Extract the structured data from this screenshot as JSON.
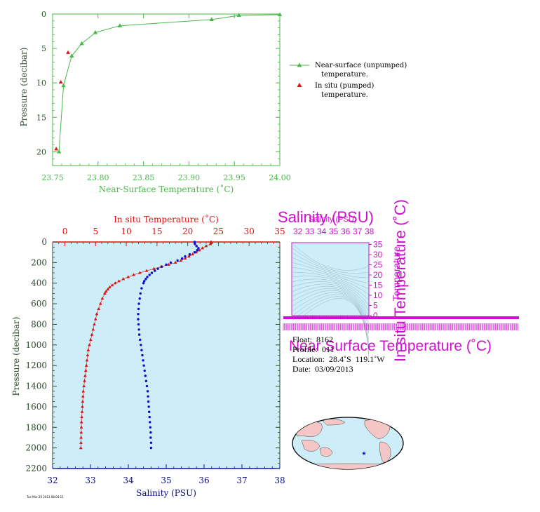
{
  "colors": {
    "green": "#4ab84a",
    "red": "#dd1111",
    "blue": "#0a0ad0",
    "navy": "#0a0a80",
    "magenta": "#d010d0",
    "plot_bg": "#cdeef8",
    "dark_green": "#2a4a2a"
  },
  "chart_data": [
    {
      "type": "line",
      "xlabel": "Near-Surface Temperature (˚C)",
      "ylabel": "Pressure (decibar)",
      "xlim": [
        23.75,
        24.0
      ],
      "ylim": [
        22,
        0
      ],
      "xticks": [
        "23.75",
        "23.80",
        "23.85",
        "23.90",
        "23.95",
        "24.00"
      ],
      "yticks": [
        "0",
        "5",
        "10",
        "15",
        "20"
      ],
      "legend_position": "right",
      "series": [
        {
          "name": "Near-surface (unpumped) temperature.",
          "marker": "triangle",
          "x": [
            23.757,
            23.762,
            23.771,
            23.782,
            23.797,
            23.824,
            23.925,
            23.955,
            24.0
          ],
          "y": [
            20.0,
            10.4,
            6.1,
            4.3,
            2.7,
            1.7,
            0.8,
            0.2,
            0.1
          ]
        },
        {
          "name": "In situ (pumped) temperature.",
          "marker": "triangle",
          "x": [
            23.754,
            23.759,
            23.767
          ],
          "y": [
            19.6,
            9.9,
            5.6
          ]
        }
      ]
    },
    {
      "type": "scatter",
      "ylabel": "Pressure (decibar)",
      "x_bottom_label": "Salinity (PSU)",
      "x_top_label": "In situ Temperature (˚C)",
      "salinity_lim": [
        32,
        38
      ],
      "temperature_lim": [
        -2,
        35
      ],
      "pressure_lim": [
        2200,
        0
      ],
      "salinity_ticks": [
        "32",
        "33",
        "34",
        "35",
        "36",
        "37",
        "38"
      ],
      "temperature_ticks": [
        "0",
        "5",
        "10",
        "15",
        "20",
        "25",
        "30",
        "35"
      ],
      "pressure_ticks": [
        "0",
        "200",
        "400",
        "600",
        "800",
        "1000",
        "1200",
        "1400",
        "1600",
        "1800",
        "2000",
        "2200"
      ],
      "grid": false,
      "series": [
        {
          "name": "In situ Temperature (˚C)",
          "marker": "triangle",
          "pressure": [
            0,
            10,
            20,
            40,
            60,
            80,
            100,
            120,
            140,
            160,
            180,
            200,
            220,
            240,
            260,
            280,
            300,
            320,
            340,
            360,
            380,
            400,
            420,
            440,
            460,
            480,
            500,
            550,
            600,
            650,
            700,
            750,
            800,
            850,
            900,
            950,
            1000,
            1050,
            1100,
            1150,
            1200,
            1250,
            1300,
            1350,
            1400,
            1450,
            1500,
            1550,
            1600,
            1650,
            1700,
            1750,
            1800,
            1850,
            1900,
            1950,
            2000
          ],
          "temperature": [
            23.8,
            23.8,
            23.7,
            23.0,
            22.4,
            21.9,
            21.4,
            20.8,
            20.2,
            19.6,
            18.9,
            18.0,
            16.9,
            15.7,
            14.5,
            13.3,
            12.2,
            11.2,
            10.3,
            9.5,
            8.8,
            8.2,
            7.7,
            7.3,
            7.0,
            6.7,
            6.5,
            6.1,
            5.8,
            5.5,
            5.2,
            5.0,
            4.8,
            4.6,
            4.4,
            4.2,
            4.0,
            3.8,
            3.7,
            3.6,
            3.5,
            3.4,
            3.3,
            3.2,
            3.1,
            3.0,
            2.95,
            2.9,
            2.85,
            2.8,
            2.75,
            2.7,
            2.68,
            2.66,
            2.64,
            2.62,
            2.6
          ]
        },
        {
          "name": "Salinity (PSU)",
          "marker": "dot",
          "pressure": [
            0,
            20,
            40,
            60,
            80,
            100,
            120,
            140,
            160,
            180,
            200,
            220,
            240,
            260,
            280,
            300,
            320,
            340,
            360,
            380,
            400,
            450,
            500,
            550,
            600,
            650,
            700,
            750,
            800,
            850,
            900,
            950,
            1000,
            1050,
            1100,
            1150,
            1200,
            1250,
            1300,
            1350,
            1400,
            1450,
            1500,
            1550,
            1600,
            1650,
            1700,
            1750,
            1800,
            1850,
            1900,
            1950,
            2000
          ],
          "salinity": [
            35.75,
            35.76,
            35.8,
            35.85,
            35.82,
            35.75,
            35.62,
            35.5,
            35.42,
            35.3,
            35.12,
            35.0,
            34.88,
            34.78,
            34.7,
            34.62,
            34.56,
            34.5,
            34.46,
            34.42,
            34.4,
            34.35,
            34.32,
            34.3,
            34.28,
            34.27,
            34.26,
            34.26,
            34.27,
            34.28,
            34.29,
            34.31,
            34.33,
            34.35,
            34.37,
            34.39,
            34.41,
            34.43,
            34.45,
            34.47,
            34.49,
            34.51,
            34.52,
            34.53,
            34.54,
            34.55,
            34.56,
            34.57,
            34.58,
            34.59,
            34.59,
            34.6,
            34.6
          ]
        }
      ]
    },
    {
      "type": "scatter",
      "title": "Salinity (PSU)",
      "title_small": "Salinity (PSU)",
      "xlabel": "Near Surface Temperature (˚C)",
      "ylabel": "In situ Temperature (˚C)",
      "ylabel_overlap": "Temperature",
      "xticks": [
        "32",
        "33",
        "34",
        "35",
        "36",
        "37",
        "38"
      ],
      "yticks": [
        "0",
        "5",
        "10",
        "15",
        "20",
        "25",
        "30",
        "35"
      ],
      "series": []
    }
  ],
  "info": {
    "float": "Float:  8162",
    "profile": "Profile:  011",
    "location": "Location:  28.4˚S  119.1˚W",
    "date": "Date:  03/09/2013"
  },
  "footer_note": "Tue Mar 26 2013 08:04:11"
}
